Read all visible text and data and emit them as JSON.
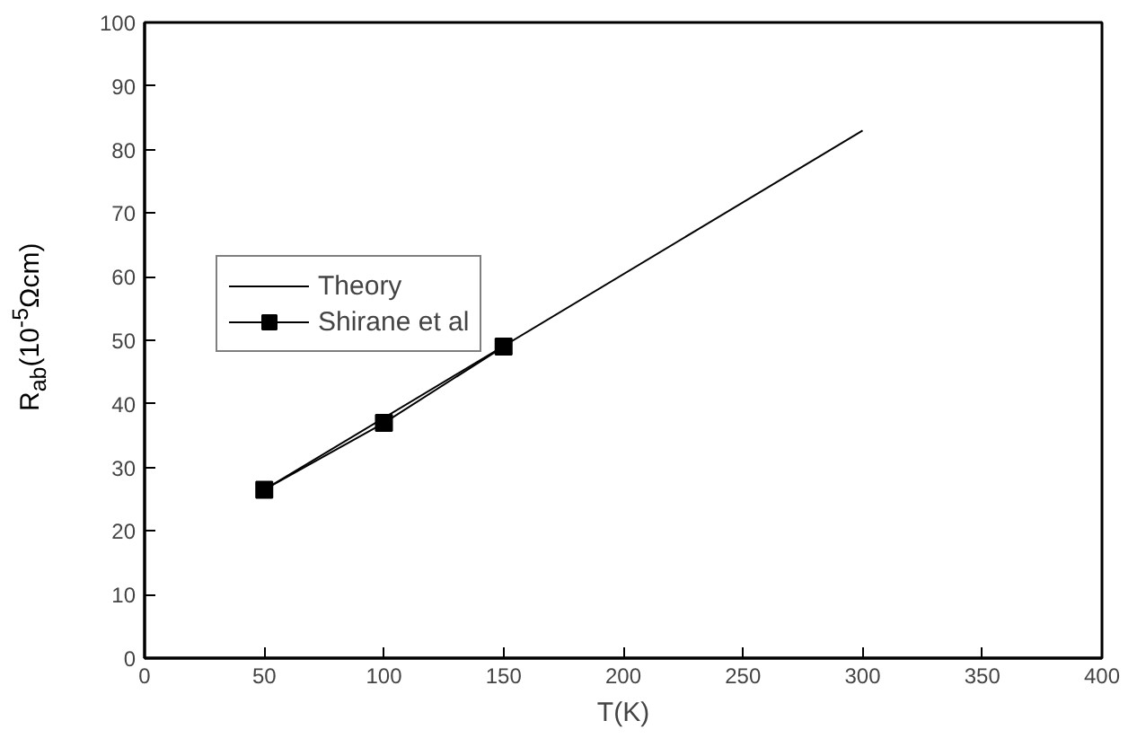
{
  "chart_data": {
    "type": "line",
    "xlabel": "T(K)",
    "ylabel": "R$_{ab}$(10$^{-5}$Ωcm)",
    "xlim": [
      0,
      400
    ],
    "xticks": [
      0,
      50,
      100,
      150,
      200,
      250,
      300,
      350,
      400
    ],
    "ylim": [
      0,
      100
    ],
    "yticks": [
      0,
      10,
      20,
      30,
      40,
      50,
      60,
      70,
      80,
      90,
      100
    ],
    "grid": false,
    "legend": "top left",
    "line_style": "solid",
    "series": [
      {
        "name": "Theory",
        "color": "#000000",
        "x": [
          50,
          300
        ],
        "values": [
          26.5,
          83
        ]
      },
      {
        "name": "Shirane et al",
        "color": "#000000",
        "x": [
          50,
          100,
          150
        ],
        "values": [
          26.5,
          37,
          49
        ],
        "marker": "square"
      }
    ]
  }
}
